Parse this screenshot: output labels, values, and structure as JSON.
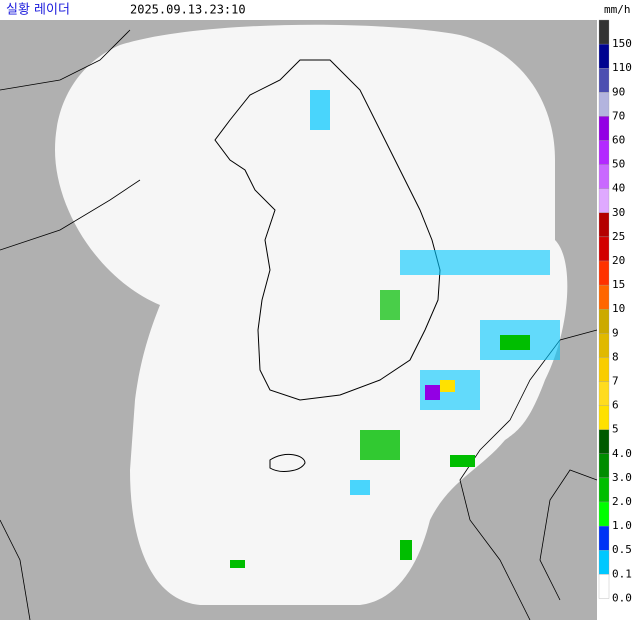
{
  "header": {
    "title": "실황 레이더",
    "timestamp": "2025.09.13.23:10",
    "unit": "mm/h"
  },
  "legend": [
    {
      "label": "150",
      "color": "#333333"
    },
    {
      "label": "110",
      "color": "#000390"
    },
    {
      "label": "90",
      "color": "#4c4eb1"
    },
    {
      "label": "70",
      "color": "#b3b4de"
    },
    {
      "label": "60",
      "color": "#9300e4"
    },
    {
      "label": "50",
      "color": "#b329ff"
    },
    {
      "label": "40",
      "color": "#c969ff"
    },
    {
      "label": "30",
      "color": "#dfa9ff"
    },
    {
      "label": "25",
      "color": "#b40000"
    },
    {
      "label": "20",
      "color": "#d20000"
    },
    {
      "label": "15",
      "color": "#ff3200"
    },
    {
      "label": "10",
      "color": "#ff6600"
    },
    {
      "label": "9",
      "color": "#ccaa00"
    },
    {
      "label": "8",
      "color": "#e0b900"
    },
    {
      "label": "7",
      "color": "#f9cd00"
    },
    {
      "label": "6",
      "color": "#ffdc1f"
    },
    {
      "label": "5",
      "color": "#ffe100"
    },
    {
      "label": "4.0",
      "color": "#005a00"
    },
    {
      "label": "3.0",
      "color": "#008c00"
    },
    {
      "label": "2.0",
      "color": "#00be00"
    },
    {
      "label": "1.0",
      "color": "#00ff00"
    },
    {
      "label": "0.5",
      "color": "#0033f5"
    },
    {
      "label": "0.1",
      "color": "#00c8ff"
    },
    {
      "label": "0.0",
      "color": "#ffffff"
    }
  ]
}
